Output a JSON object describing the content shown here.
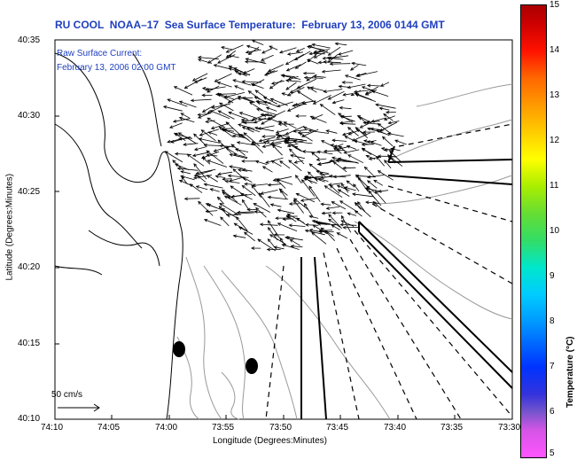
{
  "title": "RU COOL  NOAA–17  Sea Surface Temperature:  February 13, 2006 0144 GMT",
  "annotation": {
    "line1": "Raw Surface Current:",
    "line2": "February 13, 2006 02:00 GMT"
  },
  "axes": {
    "xlabel": "Longitude (Degrees:Minutes)",
    "ylabel": "Latitude (Degrees:Minutes)",
    "x_ticks": [
      "74:10",
      "74:05",
      "74:00",
      "73:55",
      "73:50",
      "73:45",
      "73:40",
      "73:35",
      "73:30"
    ],
    "y_ticks": [
      "40:35",
      "40:30",
      "40:25",
      "40:20",
      "40:15",
      "40:10"
    ]
  },
  "scale": {
    "label": "50 cm/s"
  },
  "colorbar": {
    "label": "Temperature (°C)",
    "ticks": [
      "15",
      "14",
      "13",
      "12",
      "11",
      "10",
      "9",
      "8",
      "7",
      "6",
      "5"
    ],
    "colors": {
      "high": "#aa0000",
      "mid": "#00e6cc",
      "low": "#ff55ff"
    }
  },
  "map": {
    "land_color": "#ffffff",
    "coastline_color": "#000000",
    "bathymetry_color": "#999999",
    "vector_color": "#000000",
    "stations": 2
  }
}
